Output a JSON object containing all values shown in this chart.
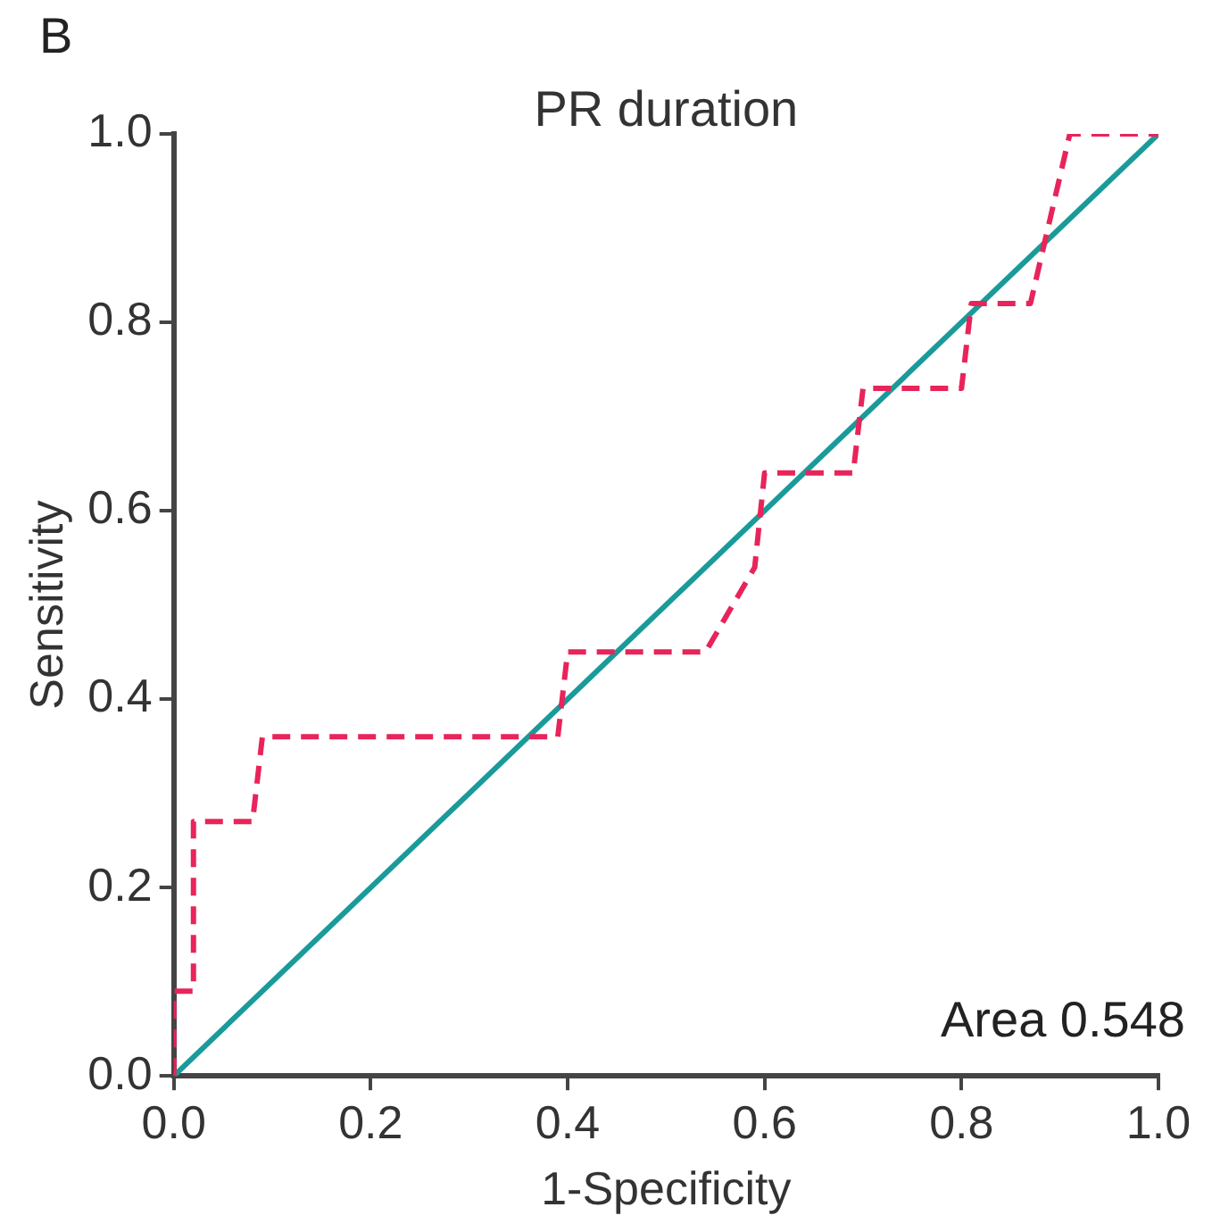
{
  "chart_data": {
    "type": "line",
    "title": "PR duration",
    "xlabel": "1-Specificity",
    "ylabel": "Sensitivity",
    "annotations": [
      "B",
      "Area 0.548"
    ],
    "series": [
      {
        "color": "#e8245a",
        "line_style": "dashed",
        "x": [
          0,
          0,
          0.02,
          0.02,
          0.08,
          0.09,
          0.39,
          0.4,
          0.54,
          0.59,
          0.6,
          0.69,
          0.7,
          0.8,
          0.81,
          0.87,
          0.91,
          1
        ],
        "values": [
          0,
          0.09,
          0.09,
          0.27,
          0.27,
          0.36,
          0.36,
          0.45,
          0.45,
          0.54,
          0.64,
          0.64,
          0.73,
          0.73,
          0.82,
          0.82,
          1,
          1
        ]
      },
      {
        "color": "#1a9a9a",
        "line_style": "solid",
        "x": [
          0,
          1
        ],
        "values": [
          0,
          1
        ]
      }
    ],
    "xlim": [
      0,
      1
    ],
    "ylim": [
      0,
      1
    ],
    "xticks": [
      {
        "value": 0,
        "label": "0.0"
      },
      {
        "value": 0.2,
        "label": "0.2"
      },
      {
        "value": 0.4,
        "label": "0.4"
      },
      {
        "value": 0.6,
        "label": "0.6"
      },
      {
        "value": 0.8,
        "label": "0.8"
      },
      {
        "value": 1,
        "label": "1.0"
      }
    ],
    "yticks": [
      {
        "value": 0,
        "label": "0.0"
      },
      {
        "value": 0.2,
        "label": "0.2"
      },
      {
        "value": 0.4,
        "label": "0.4"
      },
      {
        "value": 0.6,
        "label": "0.6"
      },
      {
        "value": 0.8,
        "label": "0.8"
      },
      {
        "value": 1,
        "label": "1.0"
      }
    ],
    "grid": false,
    "legend": false,
    "marker": "none"
  }
}
